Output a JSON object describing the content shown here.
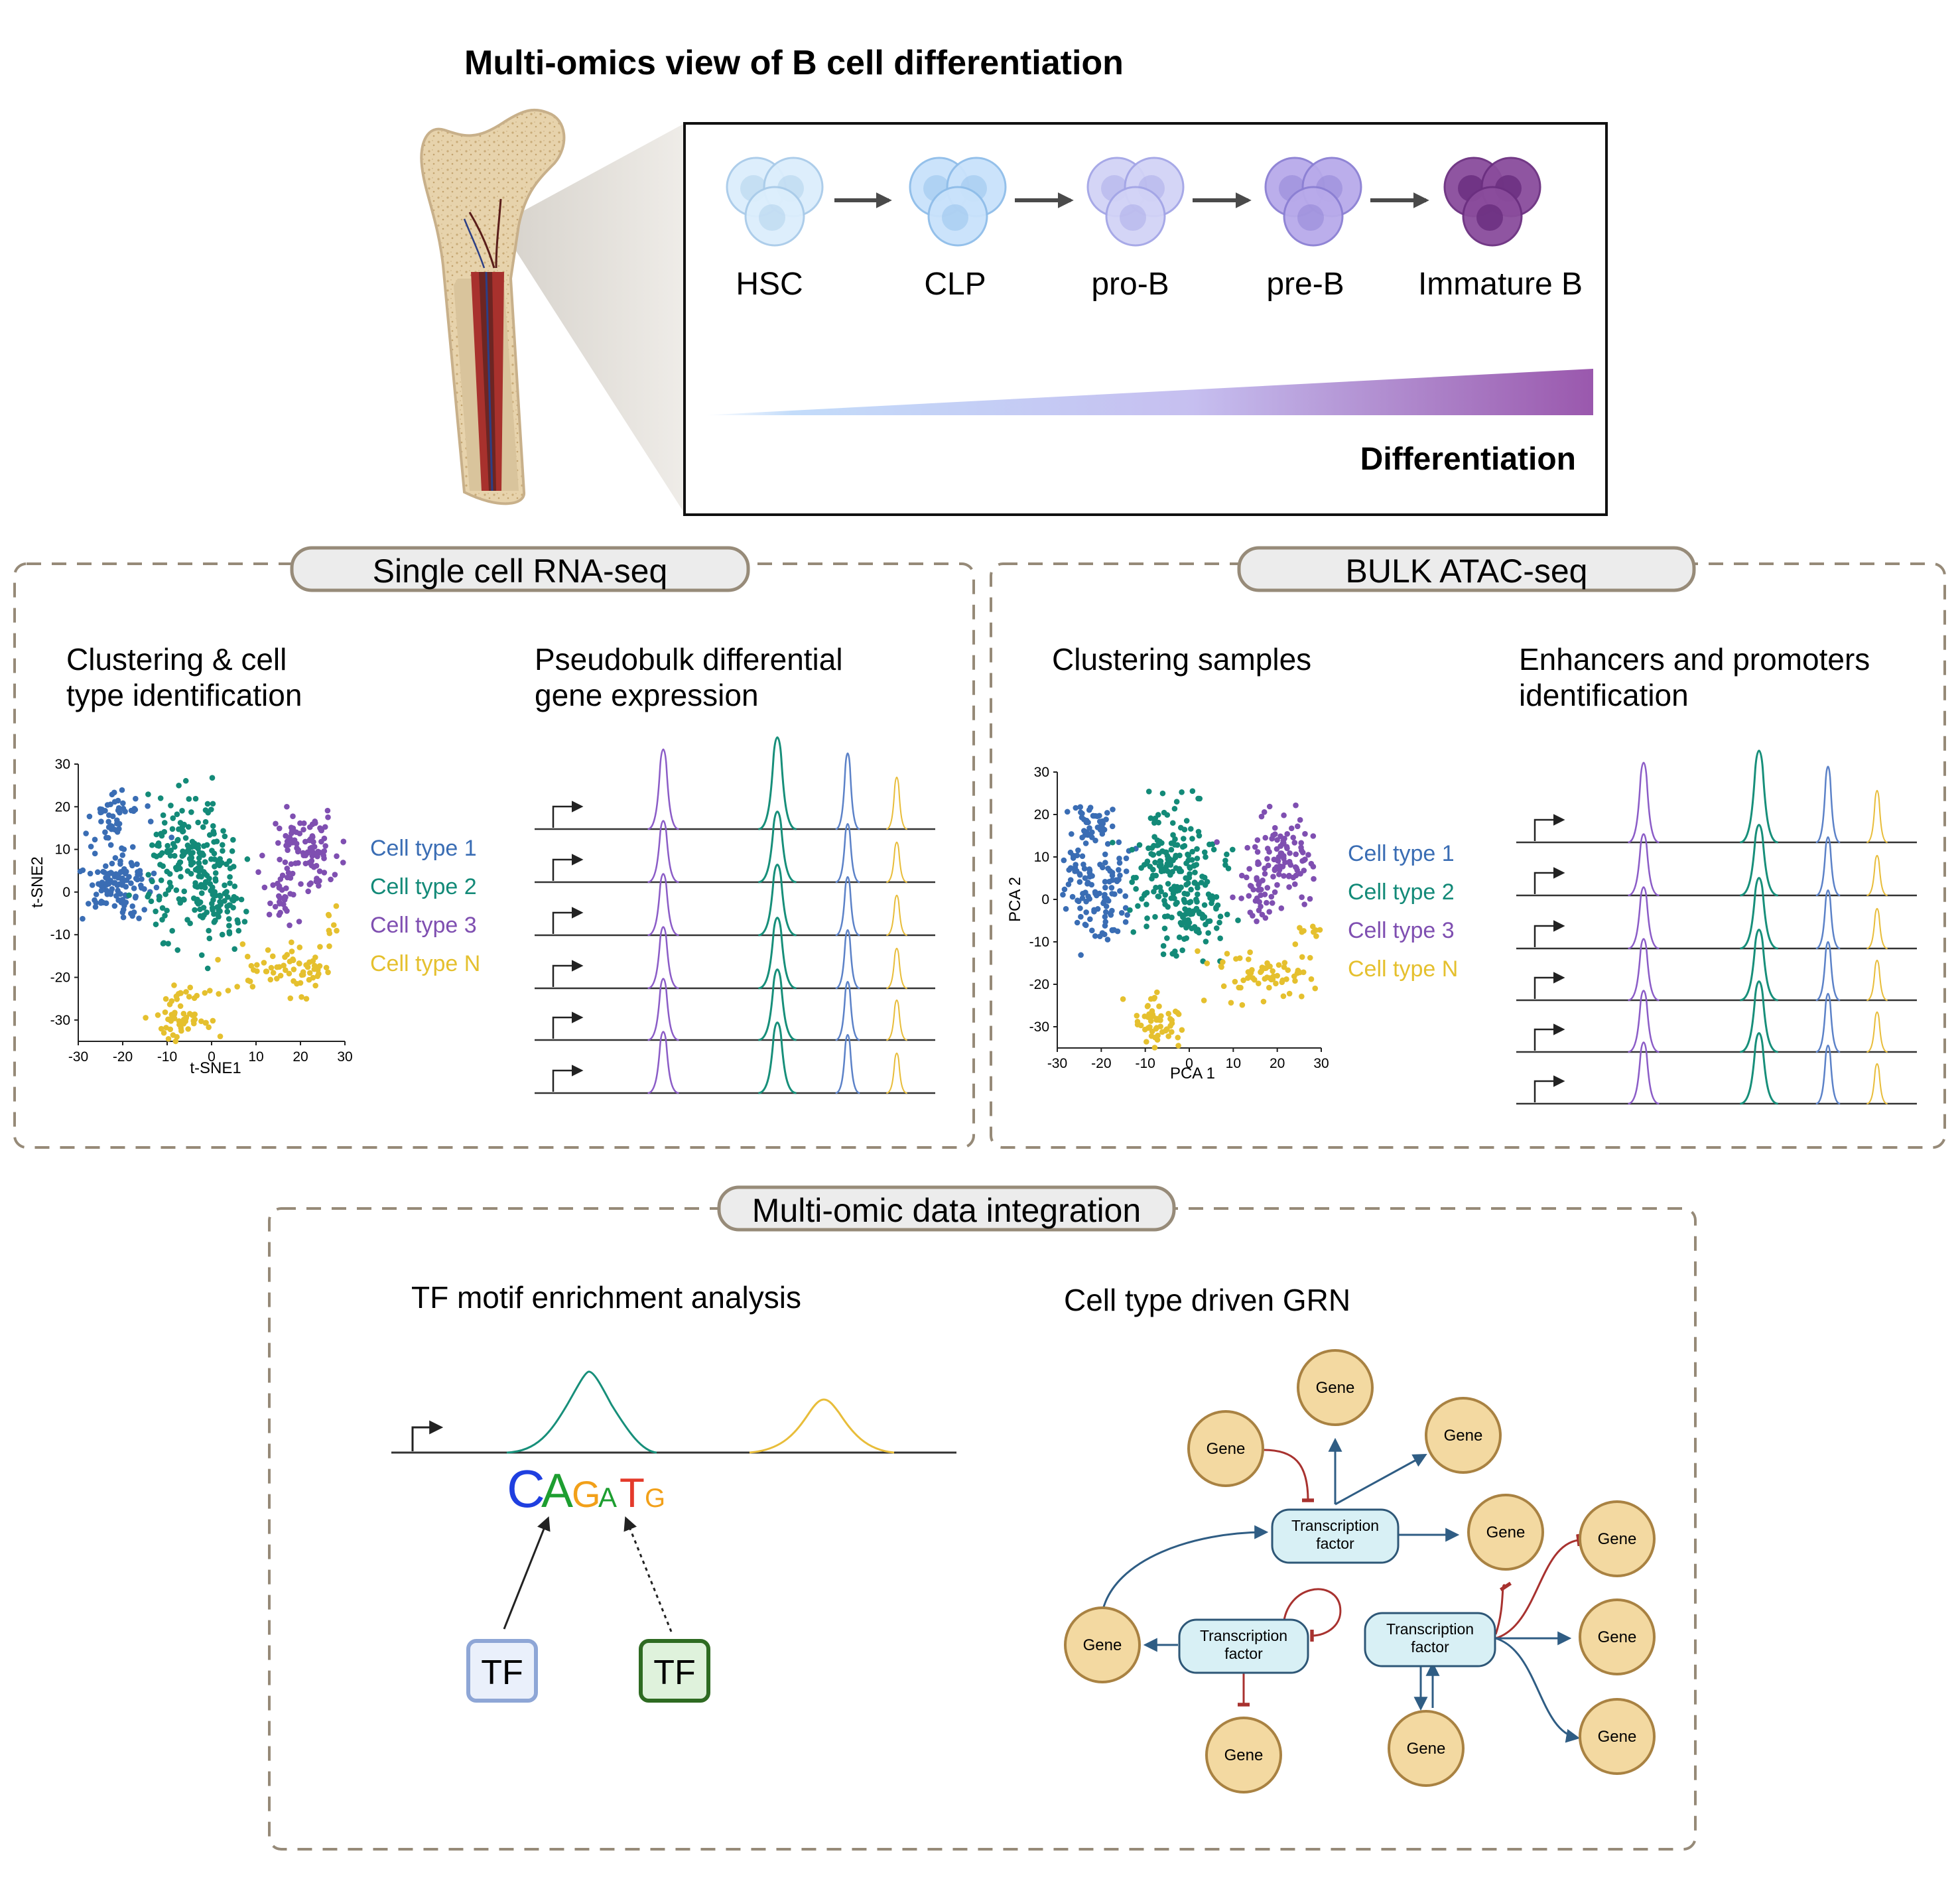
{
  "title": "Multi-omics view of B cell differentiation",
  "differentiation": {
    "stages": [
      "HSC",
      "CLP",
      "pro-B",
      "pre-B",
      "Immature B"
    ],
    "gradient_label": "Differentiation",
    "colors": {
      "stage_fills": [
        "#dceefc",
        "#c9e2fb",
        "#d2d3f6",
        "#b8aaea",
        "#8a4c9c"
      ],
      "stage_strokes": [
        "#a9cbe9",
        "#8fbde9",
        "#a3a5e6",
        "#8b7fd3",
        "#6b2f80"
      ],
      "gradient_start": "#ffffff",
      "gradient_mid": "#c6bff0",
      "gradient_end": "#9a58ad"
    }
  },
  "scrna": {
    "section_label": "Single cell RNA-seq",
    "panel1_title_line1": "Clustering & cell",
    "panel1_title_line2": "type identification",
    "panel2_title_line1": "Pseudobulk differential",
    "panel2_title_line2": "gene expression",
    "xlabel": "t-SNE1",
    "ylabel": "t-SNE2",
    "legend": [
      "Cell type 1",
      "Cell type 2",
      "Cell type 3",
      "Cell type N"
    ]
  },
  "atac": {
    "section_label": "BULK ATAC-seq",
    "panel1_title": "Clustering samples",
    "panel2_title_line1": "Enhancers and promoters",
    "panel2_title_line2": "identification",
    "xlabel": "PCA 1",
    "ylabel": "PCA 2",
    "legend": [
      "Cell type 1",
      "Cell type 2",
      "Cell type 3",
      "Cell type N"
    ]
  },
  "integration": {
    "section_label": "Multi-omic data integration",
    "panel1_title": "TF motif enrichment analysis",
    "panel2_title": "Cell type driven GRN",
    "motif_letters": [
      "C",
      "A",
      "G",
      "A",
      "T",
      "G"
    ],
    "tf_labels": [
      "TF",
      "TF"
    ],
    "grn": {
      "tf_label_line1": "Transcription",
      "tf_label_line2": "factor",
      "gene_label": "Gene"
    }
  },
  "colors": {
    "cell_type_1": "#3a6db4",
    "cell_type_2": "#138a78",
    "cell_type_3": "#7f4fb1",
    "cell_type_n": "#e5c02e",
    "peak_purple": "#8b5cc7",
    "peak_teal": "#178f7a",
    "peak_blue": "#5c82c8",
    "peak_yellow": "#e8bd3a",
    "dashed_border": "#968a78",
    "pill_fill": "#ececec",
    "gene_fill": "#f3d9a1",
    "gene_stroke": "#a98242",
    "tf_box_fill": "#d8f0f5",
    "tf_box_stroke": "#2e5777",
    "activation": "#2f5d84",
    "inhibition": "#a8322f",
    "motif_C": "#1f3fe0",
    "motif_A": "#1d9e30",
    "motif_G": "#f2a019",
    "motif_T": "#e43a2b"
  },
  "chart_data": [
    {
      "type": "scatter",
      "title": "Clustering & cell type identification",
      "xlabel": "t-SNE1",
      "ylabel": "t-SNE2",
      "xlim": [
        -30,
        30
      ],
      "ylim": [
        -35,
        30
      ],
      "xticks": [
        -30,
        -20,
        -10,
        0,
        10,
        20,
        30
      ],
      "yticks": [
        30,
        20,
        10,
        0,
        -10,
        -20,
        -30
      ],
      "series": [
        {
          "name": "Cell type 1",
          "clusters": [
            {
              "cx": -22,
              "cy": 18,
              "sx": 3.6,
              "sy": 3.6,
              "n": 45
            },
            {
              "cx": -21,
              "cy": 2,
              "sx": 4.2,
              "sy": 6,
              "n": 115
            }
          ]
        },
        {
          "name": "Cell type 2",
          "clusters": [
            {
              "cx": -4,
              "cy": 6,
              "sx": 6,
              "sy": 9,
              "n": 200
            },
            {
              "cx": 2,
              "cy": -5,
              "sx": 4,
              "sy": 5,
              "n": 50
            }
          ]
        },
        {
          "name": "Cell type 3",
          "clusters": [
            {
              "cx": 21,
              "cy": 10,
              "sx": 4.5,
              "sy": 5.5,
              "n": 95
            },
            {
              "cx": 16,
              "cy": 0,
              "sx": 2.5,
              "sy": 4,
              "n": 30
            }
          ]
        },
        {
          "name": "Cell type N",
          "clusters": [
            {
              "cx": -7,
              "cy": -29,
              "sx": 3.3,
              "sy": 3.3,
              "n": 60
            },
            {
              "cx": 18,
              "cy": -18,
              "sx": 8,
              "sy": 3.5,
              "n": 70
            },
            {
              "cx": 27,
              "cy": -8,
              "sx": 1.5,
              "sy": 2,
              "n": 8
            }
          ]
        }
      ]
    },
    {
      "type": "scatter",
      "title": "Clustering samples",
      "xlabel": "PCA 1",
      "ylabel": "PCA 2",
      "xlim": [
        -30,
        30
      ],
      "ylim": [
        -35,
        30
      ],
      "xticks": [
        -30,
        -20,
        -10,
        0,
        10,
        20,
        30
      ],
      "yticks": [
        30,
        20,
        10,
        0,
        -10,
        -20,
        -30
      ],
      "series": [
        {
          "name": "Cell type 1",
          "clusters": [
            {
              "cx": -22,
              "cy": 18,
              "sx": 3.6,
              "sy": 3.6,
              "n": 45
            },
            {
              "cx": -21,
              "cy": 2,
              "sx": 4.2,
              "sy": 6,
              "n": 115
            }
          ]
        },
        {
          "name": "Cell type 2",
          "clusters": [
            {
              "cx": -4,
              "cy": 6,
              "sx": 6,
              "sy": 9,
              "n": 200
            },
            {
              "cx": 2,
              "cy": -5,
              "sx": 4,
              "sy": 5,
              "n": 50
            }
          ]
        },
        {
          "name": "Cell type 3",
          "clusters": [
            {
              "cx": 21,
              "cy": 10,
              "sx": 4.5,
              "sy": 5.5,
              "n": 95
            },
            {
              "cx": 16,
              "cy": 0,
              "sx": 2.5,
              "sy": 4,
              "n": 30
            }
          ]
        },
        {
          "name": "Cell type N",
          "clusters": [
            {
              "cx": -7,
              "cy": -29,
              "sx": 3.3,
              "sy": 3.3,
              "n": 60
            },
            {
              "cx": 18,
              "cy": -18,
              "sx": 8,
              "sy": 3.5,
              "n": 70
            },
            {
              "cx": 27,
              "cy": -8,
              "sx": 1.5,
              "sy": 2,
              "n": 8
            }
          ]
        }
      ]
    }
  ]
}
